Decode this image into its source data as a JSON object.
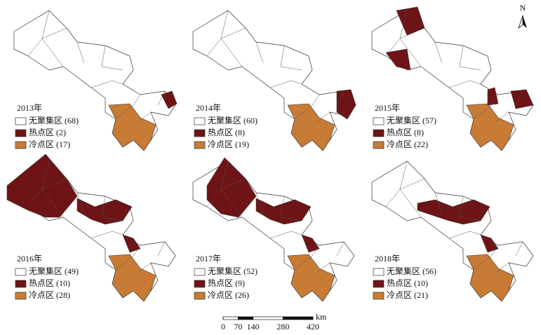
{
  "north": "N",
  "panels": [
    {
      "year": "2013年",
      "legend": [
        "无聚集区 (68)",
        "热点区 (2)",
        "冷点区 (17)"
      ]
    },
    {
      "year": "2014年",
      "legend": [
        "无聚集区 (60)",
        "热点区 (8)",
        "冷点区 (19)"
      ]
    },
    {
      "year": "2015年",
      "legend": [
        "无聚集区 (57)",
        "热点区 (8)",
        "冷点区 (22)"
      ]
    },
    {
      "year": "2016年",
      "legend": [
        "无聚集区 (49)",
        "热点区 (10)",
        "冷点区 (28)"
      ]
    },
    {
      "year": "2017年",
      "legend": [
        "无聚集区 (52)",
        "热点区 (9)",
        "冷点区 (26)"
      ]
    },
    {
      "year": "2018年",
      "legend": [
        "无聚集区 (56)",
        "热点区 (10)",
        "冷点区 (21)"
      ]
    }
  ],
  "scale_bar": {
    "ticks": [
      0,
      70,
      140,
      280,
      420
    ],
    "unit": "km"
  }
}
